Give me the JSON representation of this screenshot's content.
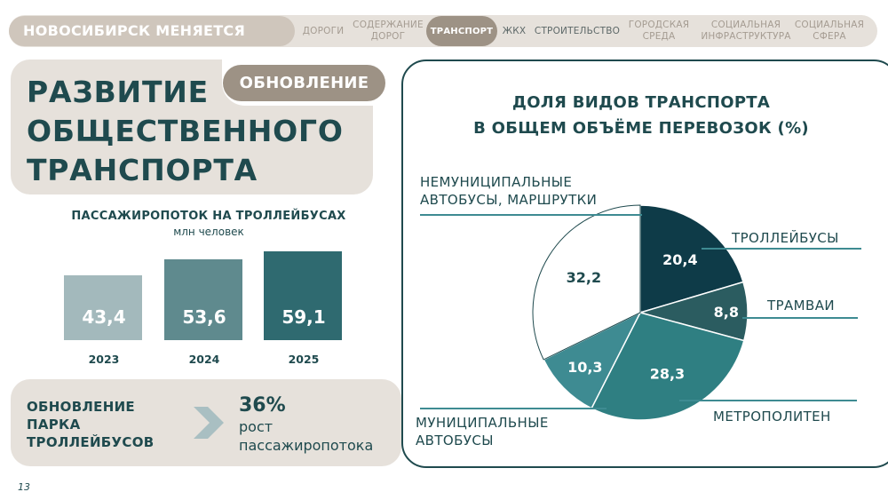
{
  "nav": {
    "brand": "НОВОСИБИРСК МЕНЯЕТСЯ",
    "items": [
      {
        "label": "ДОРОГИ"
      },
      {
        "label1": "СОДЕРЖАНИЕ",
        "label2": "ДОРОГ"
      },
      {
        "label": "ТРАНСПОРТ"
      },
      {
        "label": "ЖКХ"
      },
      {
        "label": "СТРОИТЕЛЬСТВО"
      },
      {
        "label1": "ГОРОДСКАЯ",
        "label2": "СРЕДА"
      },
      {
        "label1": "СОЦИАЛЬНАЯ",
        "label2": "ИНФРАСТРУКТУРА"
      },
      {
        "label1": "СОЦИАЛЬНАЯ",
        "label2": "СФЕРА"
      }
    ],
    "active_index": 2
  },
  "header": {
    "title_lines": [
      "РАЗВИТИЕ",
      "ОБЩЕСТВЕННОГО",
      "ТРАНСПОРТА"
    ],
    "badge": "ОБНОВЛЕНИЕ"
  },
  "colors": {
    "dark_teal": "#1f4a4e",
    "beige": "#e6e1db",
    "taupe": "#9d9285",
    "bar_2023": "#a3b9bc",
    "bar_2024": "#5f8a8e",
    "bar_2025": "#2f6a70",
    "slice_trolleybus": "#0e3b48",
    "slice_tram": "#2b5c60",
    "slice_metro": "#2f7f82",
    "slice_municipal": "#3e8b92",
    "slice_nonmunicipal": "#ffffff"
  },
  "chart_data": [
    {
      "type": "bar",
      "title": "ПАССАЖИРОПОТОК НА ТРОЛЛЕЙБУСАХ",
      "subtitle": "млн человек",
      "categories": [
        "2023",
        "2024",
        "2025"
      ],
      "values": [
        43.4,
        53.6,
        59.1
      ],
      "value_labels": [
        "43,4",
        "53,6",
        "59,1"
      ],
      "ylim": [
        0,
        59.1
      ],
      "grid": false,
      "legend": "none"
    },
    {
      "type": "pie",
      "title_lines": [
        "ДОЛЯ ВИДОВ ТРАНСПОРТА",
        "В ОБЩЕМ ОБЪЁМЕ ПЕРЕВОЗОК (%)"
      ],
      "slices": [
        {
          "name": "ТРОЛЛЕЙБУСЫ",
          "value": 20.4,
          "label": "20,4"
        },
        {
          "name": "ТРАМВАИ",
          "value": 8.8,
          "label": "8,8"
        },
        {
          "name": "МЕТРОПОЛИТЕН",
          "value": 28.3,
          "label": "28,3"
        },
        {
          "name_lines": [
            "МУНИЦИПАЛЬНЫЕ",
            "АВТОБУСЫ"
          ],
          "value": 10.3,
          "label": "10,3"
        },
        {
          "name_lines": [
            "НЕМУНИЦИПАЛЬНЫЕ",
            "АВТОБУСЫ, МАРШРУТКИ"
          ],
          "value": 32.2,
          "label": "32,2"
        }
      ],
      "start": "12 o'clock",
      "direction": "clockwise",
      "legend": "labels around pie"
    }
  ],
  "info": {
    "label_lines": [
      "ОБНОВЛЕНИЕ",
      "ПАРКА",
      "ТРОЛЛЕЙБУСОВ"
    ],
    "percent": "36%",
    "desc_lines": [
      "рост",
      "пассажиропотока"
    ]
  },
  "page_number": "13"
}
